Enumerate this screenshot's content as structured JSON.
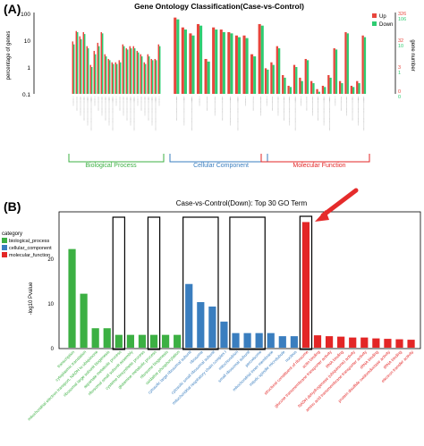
{
  "colors": {
    "up": "#e8453c",
    "down": "#2ecc71",
    "bp": "#3cb043",
    "cc": "#3a7ebf",
    "mf": "#e32626",
    "arrow": "#e52b2b",
    "frame": "#000000"
  },
  "panel_a": {
    "label": "(A)",
    "title": "Gene Ontology Classification(Case-vs-Control)",
    "ylabel_left": "percentage of genes",
    "ylabel_right": "gene number",
    "left_ticks": [
      "100",
      "10",
      "1",
      "0.1"
    ],
    "right_ticks": [
      {
        "up": "326",
        "down": "106"
      },
      {
        "up": "32",
        "down": "10"
      },
      {
        "up": "3",
        "down": "1"
      },
      {
        "up": "0",
        "down": "0"
      }
    ],
    "groups": [
      "Biological Process",
      "Cellular Component",
      "Molecular Function"
    ]
  },
  "panel_b": {
    "label": "(B)",
    "title": "Case-vs-Control(Down): Top 30 GO Term",
    "ylabel": "-log10 Pvalue",
    "yticks": [
      "0",
      "10",
      "20"
    ],
    "legend_title": "category",
    "legend": [
      "biological_process",
      "cellular_component",
      "molecular_function"
    ]
  },
  "chart_data": [
    {
      "type": "bar",
      "title": "Gene Ontology Classification(Case-vs-Control)",
      "ylabel": "percentage of genes",
      "yscale": "log",
      "ylim": [
        0.1,
        100
      ],
      "series": [
        {
          "name": "Up"
        },
        {
          "name": "Down"
        }
      ],
      "groups": [
        {
          "name": "Biological Process",
          "count": 25,
          "up": [
            9,
            22,
            14,
            20,
            6,
            1.2,
            4,
            8,
            20,
            3,
            2,
            1.5,
            1.5,
            1.8,
            7,
            5,
            6,
            6,
            4,
            3,
            1.5,
            3,
            2,
            2,
            7
          ],
          "down": [
            7,
            20,
            11,
            17,
            5,
            1.0,
            3,
            6,
            18,
            2.5,
            1.8,
            1.3,
            1.3,
            1.5,
            6,
            4.5,
            5,
            5,
            3.5,
            2.5,
            1.3,
            2.5,
            1.8,
            1.8,
            6
          ]
        },
        {
          "name": "Cellular Component",
          "count": 12,
          "up": [
            70,
            30,
            18,
            40,
            2,
            30,
            25,
            20,
            15,
            15,
            3,
            40
          ],
          "down": [
            60,
            25,
            15,
            35,
            1.6,
            25,
            20,
            18,
            13,
            12,
            2.5,
            35
          ]
        },
        {
          "name": "Molecular Function",
          "count": 18,
          "up": [
            0.9,
            1.5,
            6,
            0.5,
            0.2,
            1.2,
            0.4,
            2,
            0.3,
            0.15,
            0.2,
            0.5,
            5,
            0.3,
            20,
            0.2,
            0.3,
            15
          ],
          "down": [
            0.8,
            1.2,
            5,
            0.4,
            0.18,
            1.0,
            0.3,
            1.8,
            0.25,
            0.12,
            0.18,
            0.4,
            4.5,
            0.25,
            18,
            0.18,
            0.25,
            13
          ]
        }
      ]
    },
    {
      "type": "bar",
      "title": "Case-vs-Control(Down): Top 30 GO Term",
      "ylabel": "-log10 Pvalue",
      "ylim": [
        0,
        29.5
      ],
      "legend_title": "category",
      "categories": [
        "transcription",
        "cytoplasmic translation",
        "mitochondrial electron transport, NADH to ubiquinone",
        "ribosomal large subunit biogenesis",
        "aspartate metabolic process",
        "ribosomal small subunit assembly",
        "cysteine biosynthetic process",
        "glutamine metabolic process",
        "ribosome biogenesis",
        "oxidative phosphorylation",
        "cytosolic large ribosomal subunit",
        "ribosome",
        "cytosolic small ribosomal subunit",
        "mitochondrial respiratory chain complex I",
        "mitochondrion",
        "small ribosomal subunit",
        "peroxisome",
        "mitochondrial inner membrane",
        "mitotic spindle microtubule",
        "nucleus",
        "structural constituent of ribosome",
        "actin binding",
        "glucose transmembrane transporter activity",
        "RNA binding",
        "NADH dehydrogenase (ubiquinone) activity",
        "amino acid transmembrane transporter activity",
        "rRNA binding",
        "protein disulfide oxidoreductase activity",
        "tRNA binding",
        "electron transfer activity"
      ],
      "category_types": [
        "bp",
        "bp",
        "bp",
        "bp",
        "bp",
        "bp",
        "bp",
        "bp",
        "bp",
        "bp",
        "cc",
        "cc",
        "cc",
        "cc",
        "cc",
        "cc",
        "cc",
        "cc",
        "cc",
        "cc",
        "mf",
        "mf",
        "mf",
        "mf",
        "mf",
        "mf",
        "mf",
        "mf",
        "mf",
        "mf"
      ],
      "values": [
        22.3,
        12.2,
        4.4,
        4.4,
        2.9,
        2.9,
        2.9,
        2.9,
        2.9,
        2.9,
        14.4,
        10.3,
        9.3,
        5.9,
        3.3,
        3.3,
        3.3,
        3.3,
        2.6,
        2.6,
        28.4,
        2.8,
        2.6,
        2.5,
        2.3,
        2.3,
        2.1,
        2.0,
        1.9,
        1.8
      ],
      "highlight_indices": [
        4,
        7,
        10,
        11,
        12,
        14,
        15,
        16,
        20
      ]
    }
  ]
}
